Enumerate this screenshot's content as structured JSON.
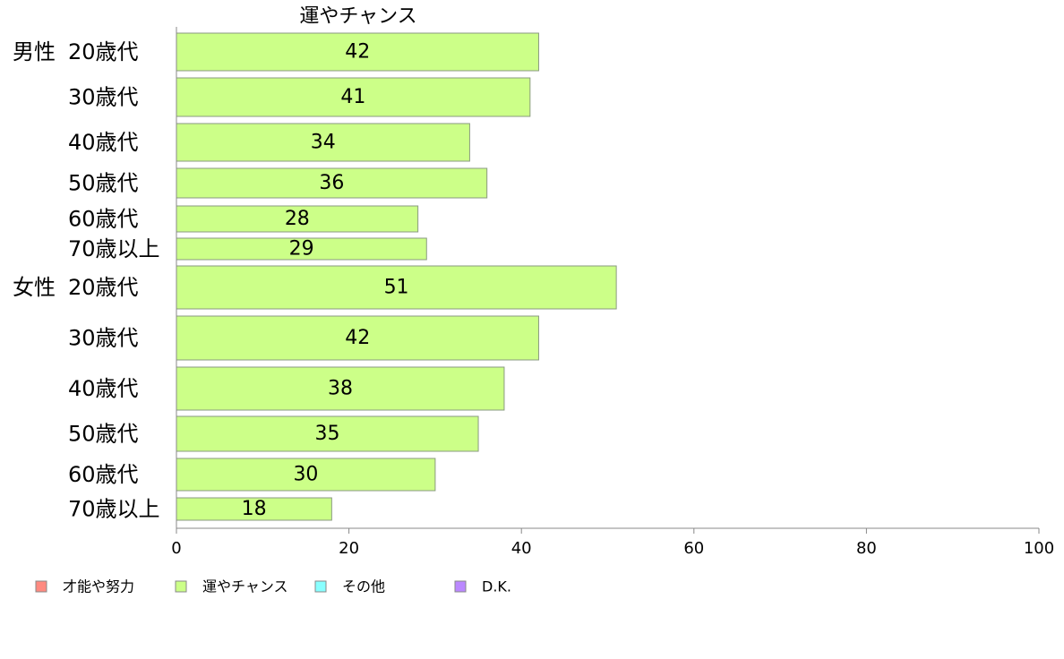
{
  "chart_data": {
    "type": "bar",
    "orientation": "horizontal",
    "title": "運やチャンス",
    "xlim": [
      0,
      100
    ],
    "xticks": [
      0,
      20,
      40,
      60,
      80,
      100
    ],
    "xlabel": "",
    "ylabel": "",
    "grid": false,
    "legend_position": "bottom-left",
    "groups": [
      {
        "label": "男性",
        "rows": [
          {
            "category": "20歳代",
            "value": 42
          },
          {
            "category": "30歳代",
            "value": 41
          },
          {
            "category": "40歳代",
            "value": 34
          },
          {
            "category": "50歳代",
            "value": 36
          },
          {
            "category": "60歳代",
            "value": 28
          },
          {
            "category": "70歳以上",
            "value": 29
          }
        ]
      },
      {
        "label": "女性",
        "rows": [
          {
            "category": "20歳代",
            "value": 51
          },
          {
            "category": "30歳代",
            "value": 42
          },
          {
            "category": "40歳代",
            "value": 38
          },
          {
            "category": "50歳代",
            "value": 35
          },
          {
            "category": "60歳代",
            "value": 30
          },
          {
            "category": "70歳以上",
            "value": 18
          }
        ]
      }
    ],
    "bar_color": "#ccff88",
    "legend": [
      {
        "label": "才能や努力",
        "color": "#ff8a80"
      },
      {
        "label": "運やチャンス",
        "color": "#ccff88"
      },
      {
        "label": "その他",
        "color": "#88ffff"
      },
      {
        "label": "D.K.",
        "color": "#bb88ff"
      }
    ]
  }
}
